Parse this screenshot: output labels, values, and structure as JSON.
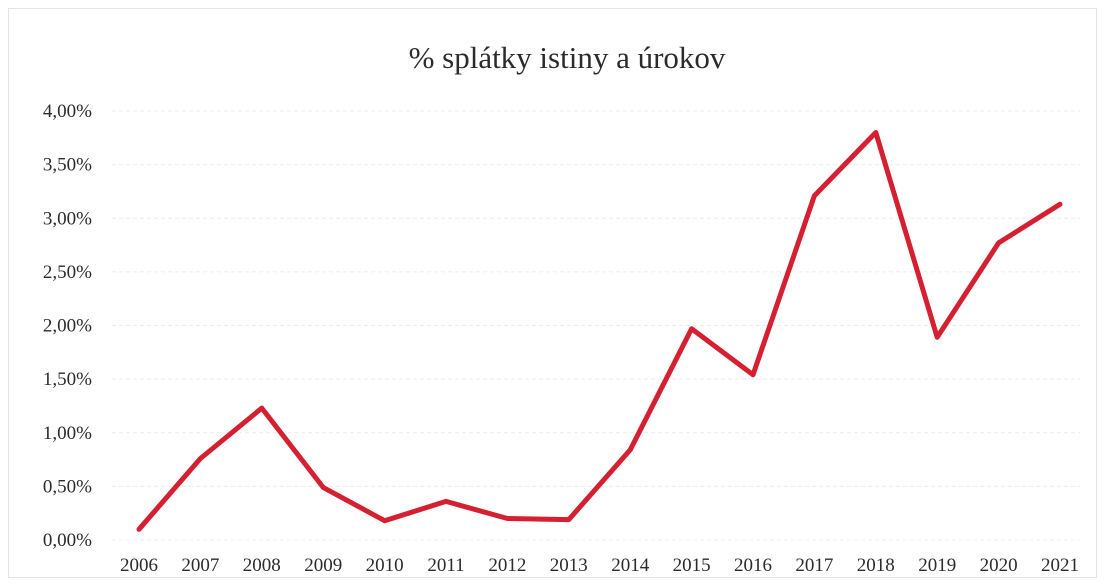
{
  "chart_data": {
    "type": "line",
    "title": "% splátky istiny a úrokov",
    "xlabel": "",
    "ylabel": "",
    "categories": [
      "2006",
      "2007",
      "2008",
      "2009",
      "2010",
      "2011",
      "2012",
      "2013",
      "2014",
      "2015",
      "2016",
      "2017",
      "2018",
      "2019",
      "2020",
      "2021"
    ],
    "series": [
      {
        "values": [
          0.1,
          0.76,
          1.23,
          0.49,
          0.18,
          0.36,
          0.2,
          0.19,
          0.84,
          1.97,
          1.54,
          3.21,
          3.8,
          1.89,
          2.77,
          3.13
        ],
        "color": "#d42030"
      }
    ],
    "ylim": [
      0,
      4
    ],
    "yticks": [
      {
        "value": 0.0,
        "label": "0,00%"
      },
      {
        "value": 0.5,
        "label": "0,50%"
      },
      {
        "value": 1.0,
        "label": "1,00%"
      },
      {
        "value": 1.5,
        "label": "1,50%"
      },
      {
        "value": 2.0,
        "label": "2,00%"
      },
      {
        "value": 2.5,
        "label": "2,50%"
      },
      {
        "value": 3.0,
        "label": "3,00%"
      },
      {
        "value": 3.5,
        "label": "3,50%"
      },
      {
        "value": 4.0,
        "label": "4,00%"
      }
    ],
    "grid": true,
    "legend": "none"
  }
}
